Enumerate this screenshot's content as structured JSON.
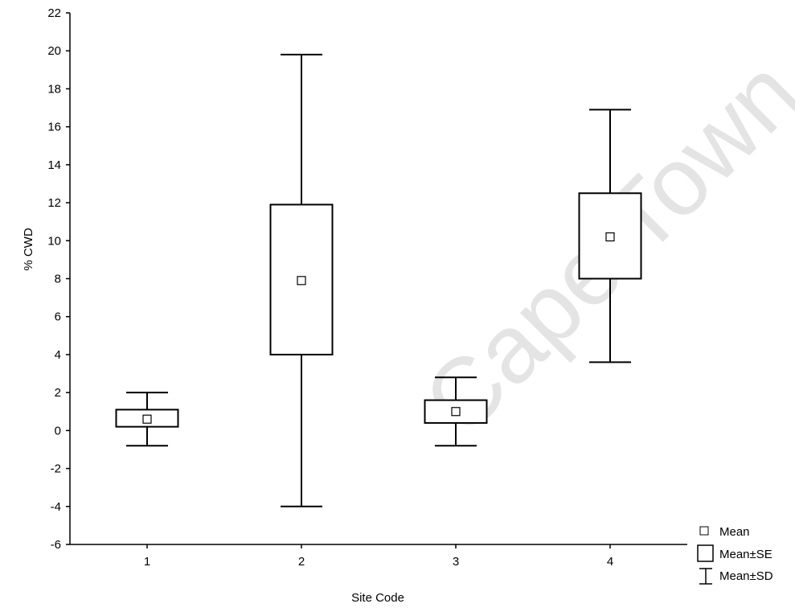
{
  "watermark_text": "Cape Town",
  "chart_data": {
    "type": "box",
    "title": "",
    "xlabel": "Site Code",
    "ylabel": "% CWD",
    "ylim": [
      -6,
      22
    ],
    "yticks": [
      -6,
      -4,
      -2,
      0,
      2,
      4,
      6,
      8,
      10,
      12,
      14,
      16,
      18,
      20,
      22
    ],
    "categories": [
      "1",
      "2",
      "3",
      "4"
    ],
    "series": [
      {
        "category": "1",
        "mean": 0.6,
        "se_low": 0.2,
        "se_high": 1.1,
        "sd_low": -0.8,
        "sd_high": 2.0
      },
      {
        "category": "2",
        "mean": 7.9,
        "se_low": 4.0,
        "se_high": 11.9,
        "sd_low": -4.0,
        "sd_high": 19.8
      },
      {
        "category": "3",
        "mean": 1.0,
        "se_low": 0.4,
        "se_high": 1.6,
        "sd_low": -0.8,
        "sd_high": 2.8
      },
      {
        "category": "4",
        "mean": 10.2,
        "se_low": 8.0,
        "se_high": 12.5,
        "sd_low": 3.6,
        "sd_high": 16.9
      }
    ],
    "legend": {
      "placement": "bottom-right",
      "items": [
        "Mean",
        "Mean±SE",
        "Mean±SD"
      ]
    },
    "grid": false
  }
}
